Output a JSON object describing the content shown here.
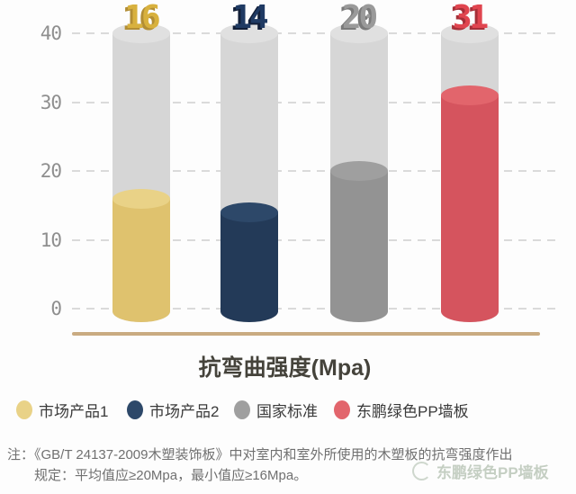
{
  "chart_data": {
    "type": "bar",
    "title": "抗弯曲强度(Mpa)",
    "categories": [
      "市场产品1",
      "市场产品2",
      "国家标准",
      "东鹏绿色PP墙板"
    ],
    "values": [
      16,
      14,
      20,
      31
    ],
    "value_labels": [
      "16",
      "14",
      "20",
      "31"
    ],
    "ylim": [
      0,
      40
    ],
    "yticks": [
      "40",
      "30",
      "20",
      "10",
      "0"
    ],
    "grid": "horizontal-dashed",
    "legend_position": "bottom",
    "colors": {
      "bar_body": [
        "#dfc26e",
        "#233a58",
        "#939393",
        "#d5545e"
      ],
      "bar_top": [
        "#e9d287",
        "#2d4869",
        "#9f9f9f",
        "#e2656c"
      ],
      "value_label": [
        "#d8b13e",
        "#1f3a63",
        "#9a9a9a",
        "#e0454f"
      ],
      "value_label_shadow": [
        "#b28e35",
        "#121f38",
        "#7a7a7a",
        "#a62f38"
      ],
      "tube": "#d6d6d6",
      "tube_top": "#e0e0e0",
      "axis_line": "#c9ab81",
      "gridline": "#dadada"
    }
  },
  "note": {
    "line1": "注：《GB/T 24137-2009木塑装饰板》中对室内和室外所使用的木塑板的抗弯强度作出",
    "line2": "规定：平均值应≥20Mpa，最小值应≥16Mpa。"
  },
  "watermark": {
    "text": "东鹏绿色PP墙板"
  }
}
